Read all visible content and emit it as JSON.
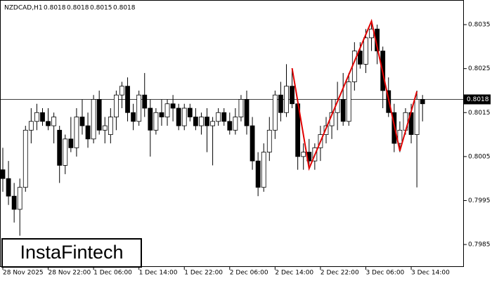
{
  "chart_data": {
    "type": "candlestick",
    "title": "NZDCAD,H1",
    "info": [
      0.8018,
      0.8018,
      0.8015,
      0.8018
    ],
    "logo": "InstaFintech",
    "categories": [
      "28 Nov 2025",
      null,
      null,
      null,
      null,
      null,
      null,
      null,
      "28 Nov 22:00",
      null,
      null,
      null,
      null,
      null,
      null,
      null,
      "1 Dec 06:00",
      null,
      null,
      null,
      null,
      null,
      null,
      null,
      "1 Dec 14:00",
      null,
      null,
      null,
      null,
      null,
      null,
      null,
      "1 Dec 22:00",
      null,
      null,
      null,
      null,
      null,
      null,
      null,
      "2 Dec 06:00",
      null,
      null,
      null,
      null,
      null,
      null,
      null,
      "2 Dec 14:00",
      null,
      null,
      null,
      null,
      null,
      null,
      null,
      "2 Dec 22:00",
      null,
      null,
      null,
      null,
      null,
      null,
      null,
      "3 Dec 06:00",
      null,
      null,
      null,
      null,
      null,
      null,
      null,
      "3 Dec 14:00",
      null,
      null
    ],
    "open": [
      0.8002,
      0.8,
      0.7996,
      0.7993,
      0.7998,
      0.8011,
      0.8013,
      0.8015,
      0.8013,
      0.8012,
      0.8011,
      0.8003,
      0.8009,
      0.8007,
      0.8014,
      0.8012,
      0.8009,
      0.8018,
      0.8011,
      0.801,
      0.8014,
      0.8019,
      0.8021,
      0.8015,
      0.8013,
      0.8019,
      0.8016,
      0.8011,
      0.8015,
      0.8014,
      0.8017,
      0.8016,
      0.8012,
      0.8016,
      0.8014,
      0.8012,
      0.8014,
      0.8012,
      0.8013,
      0.8015,
      0.8013,
      0.8011,
      0.8014,
      0.8018,
      0.8012,
      0.8004,
      0.7998,
      0.8006,
      0.8011,
      0.8019,
      0.8015,
      0.8021,
      0.8017,
      0.8005,
      0.8006,
      0.8004,
      0.8007,
      0.801,
      0.8012,
      0.8015,
      0.8018,
      0.8013,
      0.8022,
      0.8029,
      0.8026,
      0.8032,
      0.8034,
      0.8029,
      0.802,
      0.8015,
      0.8008,
      0.8011,
      0.8015,
      0.801,
      0.8018
    ],
    "high": [
      0.8007,
      0.8004,
      0.7999,
      0.8,
      0.8012,
      0.8016,
      0.8017,
      0.8016,
      0.8016,
      0.8015,
      0.8012,
      0.801,
      0.8014,
      0.8016,
      0.8018,
      0.8015,
      0.8019,
      0.802,
      0.8014,
      0.8016,
      0.802,
      0.8022,
      0.8023,
      0.8017,
      0.802,
      0.8024,
      0.8018,
      0.8016,
      0.8018,
      0.8018,
      0.8019,
      0.8017,
      0.8017,
      0.8017,
      0.8016,
      0.8015,
      0.8016,
      0.8014,
      0.8016,
      0.8016,
      0.8015,
      0.8016,
      0.8019,
      0.802,
      0.8014,
      0.8006,
      0.8008,
      0.8014,
      0.802,
      0.8022,
      0.8026,
      0.8025,
      0.8018,
      0.8008,
      0.8009,
      0.8008,
      0.8012,
      0.8014,
      0.8018,
      0.8022,
      0.8024,
      0.8024,
      0.8031,
      0.8031,
      0.8034,
      0.8036,
      0.8035,
      0.803,
      0.8023,
      0.8017,
      0.8013,
      0.8016,
      0.8017,
      0.802,
      0.8019
    ],
    "low": [
      0.7997,
      0.7994,
      0.799,
      0.7987,
      0.7997,
      0.8008,
      0.8011,
      0.8012,
      0.8011,
      0.8008,
      0.7999,
      0.8001,
      0.8006,
      0.8005,
      0.801,
      0.8007,
      0.8008,
      0.801,
      0.8008,
      0.8008,
      0.8011,
      0.8016,
      0.8013,
      0.8011,
      0.8012,
      0.8014,
      0.8005,
      0.801,
      0.8012,
      0.8012,
      0.8013,
      0.8011,
      0.8011,
      0.8013,
      0.8011,
      0.801,
      0.8006,
      0.8003,
      0.8012,
      0.8012,
      0.801,
      0.801,
      0.8013,
      0.801,
      0.8002,
      0.7996,
      0.7997,
      0.8004,
      0.8009,
      0.8013,
      0.8014,
      0.8016,
      0.8002,
      0.8002,
      0.8003,
      0.8002,
      0.8004,
      0.8008,
      0.8009,
      0.8011,
      0.8012,
      0.8012,
      0.802,
      0.8025,
      0.8024,
      0.8029,
      0.8026,
      0.8016,
      0.8014,
      0.8006,
      0.8006,
      0.801,
      0.8008,
      0.7998,
      0.8013
    ],
    "close": [
      0.8,
      0.7996,
      0.7993,
      0.7998,
      0.8011,
      0.8013,
      0.8015,
      0.8013,
      0.8012,
      0.8014,
      0.8003,
      0.8009,
      0.8007,
      0.8014,
      0.8012,
      0.8009,
      0.8018,
      0.8011,
      0.8012,
      0.8014,
      0.8019,
      0.8021,
      0.8015,
      0.8013,
      0.8019,
      0.8016,
      0.8011,
      0.8015,
      0.8014,
      0.8017,
      0.8016,
      0.8012,
      0.8016,
      0.8014,
      0.8012,
      0.8014,
      0.8012,
      0.8013,
      0.8015,
      0.8013,
      0.8011,
      0.8014,
      0.8018,
      0.8012,
      0.8004,
      0.7998,
      0.8006,
      0.8011,
      0.8019,
      0.8015,
      0.8021,
      0.8017,
      0.8005,
      0.8006,
      0.8004,
      0.8007,
      0.801,
      0.8012,
      0.8015,
      0.8018,
      0.8013,
      0.8022,
      0.8029,
      0.8026,
      0.8032,
      0.8034,
      0.8029,
      0.802,
      0.8015,
      0.8008,
      0.8011,
      0.8015,
      0.801,
      0.8018,
      0.8017
    ],
    "up_color": "#ffffff",
    "down_color": "#000000",
    "pattern": {
      "color": "#e00000",
      "x": [
        51,
        54,
        65,
        70,
        73
      ],
      "values": [
        0.80251,
        0.80023,
        0.80358,
        0.80063,
        0.80198
      ]
    },
    "current_price": 0.8018,
    "ylim": [
      0.79799,
      0.80406
    ],
    "yticks": [
      0.8035,
      0.8025,
      0.8015,
      0.8005,
      0.7995,
      0.7985
    ]
  }
}
